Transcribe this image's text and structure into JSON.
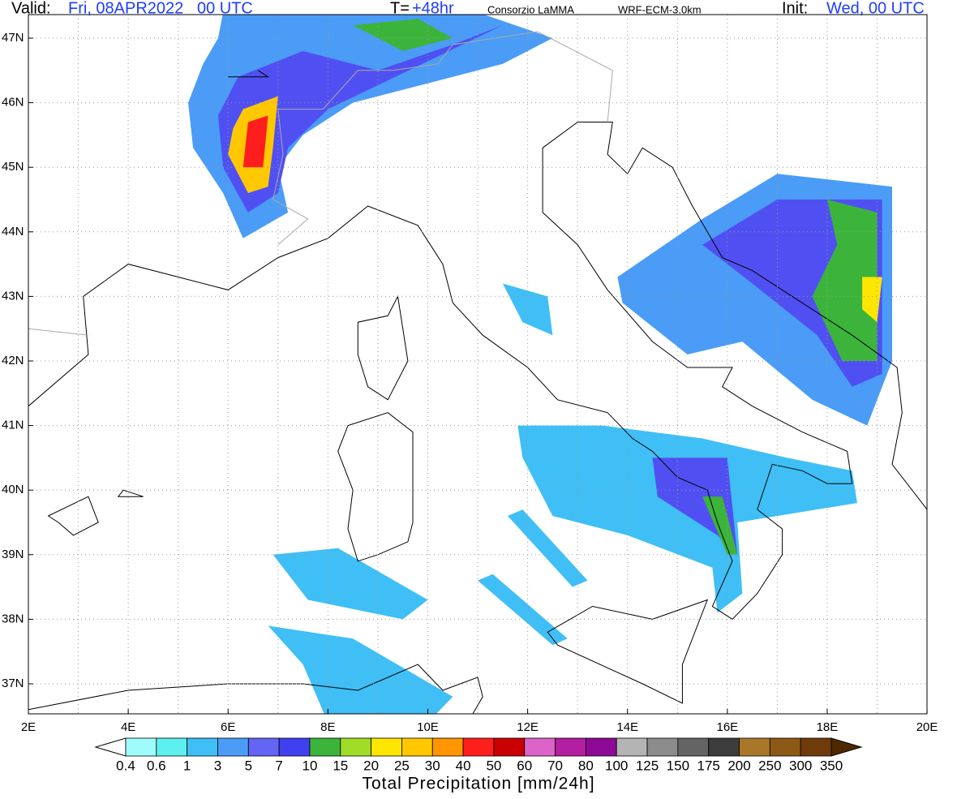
{
  "header": {
    "valid_label": "Valid:",
    "valid_time": "Fri, 08APR2022   00 UTC",
    "step_label": "T=",
    "step": "+48hr",
    "source": "Consorzio LaMMA",
    "model": "WRF-ECM-3.0km",
    "init_label": "Init:",
    "init_time": "Wed, 00 UTC"
  },
  "map": {
    "lat_labels": [
      "47N",
      "46N",
      "45N",
      "44N",
      "43N",
      "42N",
      "41N",
      "40N",
      "39N",
      "38N",
      "37N"
    ],
    "lon_labels": [
      "2E",
      "4E",
      "6E",
      "8E",
      "10E",
      "12E",
      "14E",
      "16E",
      "18E",
      "20E"
    ]
  },
  "colorbar": {
    "title": "Total Precipitation [mm/24h]",
    "labels": [
      0.4,
      0.6,
      1,
      3,
      5,
      7,
      10,
      15,
      20,
      25,
      30,
      40,
      50,
      60,
      70,
      80,
      100,
      125,
      150,
      175,
      200,
      250,
      300,
      350
    ],
    "colors": [
      "#9ffcfc",
      "#5ef0f0",
      "#3fbff5",
      "#4a9cf7",
      "#6464f5",
      "#4040f0",
      "#3cb43c",
      "#a0dc28",
      "#ffe600",
      "#ffc800",
      "#ff9600",
      "#ff1e1e",
      "#c80000",
      "#dc64c8",
      "#b41ea0",
      "#8c0a96",
      "#b4b4b4",
      "#8c8c8c",
      "#646464",
      "#3c3c3c",
      "#a87828",
      "#8c5a14",
      "#6e3c0a"
    ],
    "under_color": "#ffffff",
    "over_color": "#502800"
  }
}
